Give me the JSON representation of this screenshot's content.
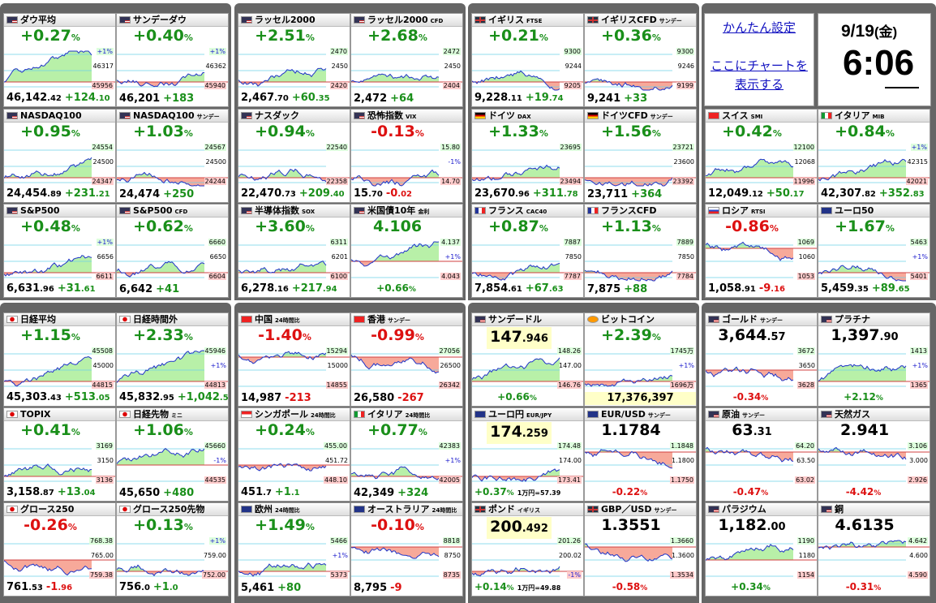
{
  "info": {
    "settings_link": "かんたん設定",
    "chart_link_line1": "ここにチャートを",
    "chart_link_line2": "表示する",
    "date": "9/19",
    "weekday": "(金)",
    "time": "6:06"
  },
  "colors": {
    "up": "#1a8f1a",
    "down": "#dd1111",
    "chart_fill": "#b8f0a8",
    "chart_fill_down": "#f7a99a",
    "line": "#1f34c8"
  },
  "tiles": [
    {
      "id": "dow",
      "name": "ダウ平均",
      "sub": "",
      "flag": "us",
      "dir": "up",
      "big": "+0.27",
      "pct": "%",
      "price": "46,142",
      "frac": ".42",
      "chg": "+124",
      "chgfrac": ".10",
      "labels": [
        "+1%",
        "46317",
        "45956"
      ],
      "mode": "green"
    },
    {
      "id": "dow-sunday",
      "name": "サンデーダウ",
      "sub": "",
      "flag": "us",
      "dir": "up",
      "big": "+0.40",
      "pct": "%",
      "price": "46,201",
      "frac": "",
      "chg": "+183",
      "chgfrac": "",
      "labels": [
        "+1%",
        "46362",
        "45940"
      ],
      "mode": "green"
    },
    {
      "id": "russell",
      "name": "ラッセル2000",
      "sub": "",
      "flag": "us",
      "dir": "up",
      "big": "+2.51",
      "pct": "%",
      "price": "2,467",
      "frac": ".70",
      "chg": "+60",
      "chgfrac": ".35",
      "labels": [
        "2470",
        "2450",
        "2420"
      ],
      "mode": "green"
    },
    {
      "id": "russell-cfd",
      "name": "ラッセル2000",
      "sub": "CFD",
      "flag": "us",
      "dir": "up",
      "big": "+2.68",
      "pct": "%",
      "price": "2,472",
      "frac": "",
      "chg": "+64",
      "chgfrac": "",
      "labels": [
        "2472",
        "2450",
        "2404"
      ],
      "mode": "green"
    },
    {
      "id": "ftse",
      "name": "イギリス",
      "sub": "FTSE",
      "flag": "uk",
      "dir": "up",
      "big": "+0.21",
      "pct": "%",
      "price": "9,228",
      "frac": ".11",
      "chg": "+19",
      "chgfrac": ".74",
      "labels": [
        "9300",
        "9244",
        "9205"
      ],
      "mode": "green"
    },
    {
      "id": "ftse-cfd",
      "name": "イギリスCFD",
      "sub": "サンデー",
      "flag": "uk",
      "dir": "up",
      "big": "+0.36",
      "pct": "%",
      "price": "9,241",
      "frac": "",
      "chg": "+33",
      "chgfrac": "",
      "labels": [
        "9300",
        "9246",
        "9199"
      ],
      "mode": "green"
    },
    {
      "id": "nasdaq",
      "name": "NASDAQ100",
      "sub": "",
      "flag": "us",
      "dir": "up",
      "big": "+0.95",
      "pct": "%",
      "price": "24,454",
      "frac": ".89",
      "chg": "+231",
      "chgfrac": ".21",
      "labels": [
        "24554",
        "24500",
        "24347"
      ],
      "mode": "green"
    },
    {
      "id": "nasdaq-sunday",
      "name": "NASDAQ100",
      "sub": "サンデー",
      "flag": "us",
      "dir": "up",
      "big": "+1.03",
      "pct": "%",
      "price": "24,474",
      "frac": "",
      "chg": "+250",
      "chgfrac": "",
      "labels": [
        "24567",
        "24500",
        "24244"
      ],
      "mode": "green"
    },
    {
      "id": "nasdaq-comp",
      "name": "ナスダック",
      "sub": "",
      "flag": "us",
      "dir": "up",
      "big": "+0.94",
      "pct": "%",
      "price": "22,470",
      "frac": ".73",
      "chg": "+209",
      "chgfrac": ".40",
      "labels": [
        "22540",
        "",
        "22358"
      ],
      "mode": "green"
    },
    {
      "id": "vix",
      "name": "恐怖指数",
      "sub": "VIX",
      "flag": "us",
      "dir": "dn",
      "big": "-0.13",
      "pct": "%",
      "price": "15",
      "frac": ".70",
      "chg": "-0",
      "chgfrac": ".02",
      "labels": [
        "15.80",
        "-1%",
        "14.70"
      ],
      "mode": "green"
    },
    {
      "id": "dax",
      "name": "ドイツ",
      "sub": "DAX",
      "flag": "de",
      "dir": "up",
      "big": "+1.33",
      "pct": "%",
      "price": "23,670",
      "frac": ".96",
      "chg": "+311",
      "chgfrac": ".78",
      "labels": [
        "23695",
        "",
        "23494"
      ],
      "mode": "green"
    },
    {
      "id": "dax-cfd",
      "name": "ドイツCFD",
      "sub": "サンデー",
      "flag": "de",
      "dir": "up",
      "big": "+1.56",
      "pct": "%",
      "price": "23,711",
      "frac": "",
      "chg": "+364",
      "chgfrac": "",
      "labels": [
        "23721",
        "23600",
        "23392"
      ],
      "mode": "green"
    },
    {
      "id": "smi",
      "name": "スイス",
      "sub": "SMI",
      "flag": "ch",
      "dir": "up",
      "big": "+0.42",
      "pct": "%",
      "price": "12,049",
      "frac": ".12",
      "chg": "+50",
      "chgfrac": ".17",
      "labels": [
        "12100",
        "12068",
        "11996"
      ],
      "mode": "green"
    },
    {
      "id": "mib",
      "name": "イタリア",
      "sub": "MIB",
      "flag": "it",
      "dir": "up",
      "big": "+0.84",
      "pct": "%",
      "price": "42,307",
      "frac": ".82",
      "chg": "+352",
      "chgfrac": ".83",
      "labels": [
        "+1%",
        "42315",
        "42021"
      ],
      "mode": "green"
    },
    {
      "id": "sp500",
      "name": "S&P500",
      "sub": "",
      "flag": "us",
      "dir": "up",
      "big": "+0.48",
      "pct": "%",
      "price": "6,631",
      "frac": ".96",
      "chg": "+31",
      "chgfrac": ".61",
      "labels": [
        "+1%",
        "6656",
        "6611"
      ],
      "mode": "green"
    },
    {
      "id": "sp500-cfd",
      "name": "S&P500",
      "sub": "CFD",
      "flag": "us",
      "dir": "up",
      "big": "+0.62",
      "pct": "%",
      "price": "6,642",
      "frac": "",
      "chg": "+41",
      "chgfrac": "",
      "labels": [
        "6660",
        "6650",
        "6604"
      ],
      "mode": "green"
    },
    {
      "id": "sox",
      "name": "半導体指数",
      "sub": "SOX",
      "flag": "us",
      "dir": "up",
      "big": "+3.60",
      "pct": "%",
      "price": "6,278",
      "frac": ".16",
      "chg": "+217",
      "chgfrac": ".94",
      "labels": [
        "6311",
        "6201",
        "6100"
      ],
      "mode": "green"
    },
    {
      "id": "us10y",
      "name": "米国債10年",
      "sub": "金利",
      "flag": "us",
      "dir": "up",
      "big": "4.106",
      "pct": "",
      "price": "",
      "frac": "",
      "chg": "+0.66",
      "chgfrac": "%",
      "labels": [
        "4.137",
        "+1%",
        "4.043"
      ],
      "mode": "mixed",
      "altfoot": true
    },
    {
      "id": "cac",
      "name": "フランス",
      "sub": "CAC40",
      "flag": "fr",
      "dir": "up",
      "big": "+0.87",
      "pct": "%",
      "price": "7,854",
      "frac": ".61",
      "chg": "+67",
      "chgfrac": ".63",
      "labels": [
        "7887",
        "7850",
        "7787"
      ],
      "mode": "green"
    },
    {
      "id": "cac-cfd",
      "name": "フランスCFD",
      "sub": "",
      "flag": "fr",
      "dir": "up",
      "big": "+1.13",
      "pct": "%",
      "price": "7,875",
      "frac": "",
      "chg": "+88",
      "chgfrac": "",
      "labels": [
        "7889",
        "7850",
        "7784"
      ],
      "mode": "green"
    },
    {
      "id": "rtsi",
      "name": "ロシア",
      "sub": "RTSI",
      "flag": "ru",
      "dir": "dn",
      "big": "-0.86",
      "pct": "%",
      "price": "1,058",
      "frac": ".91",
      "chg": "-9",
      "chgfrac": ".16",
      "labels": [
        "1069",
        "1060",
        "1053"
      ],
      "mode": "red"
    },
    {
      "id": "euro50",
      "name": "ユーロ50",
      "sub": "",
      "flag": "eu",
      "dir": "up",
      "big": "+1.67",
      "pct": "%",
      "price": "5,459",
      "frac": ".35",
      "chg": "+89",
      "chgfrac": ".65",
      "labels": [
        "5463",
        "+1%",
        "5401"
      ],
      "mode": "green"
    },
    {
      "id": "nikkei",
      "name": "日経平均",
      "sub": "",
      "flag": "jp",
      "dir": "up",
      "big": "+1.15",
      "pct": "%",
      "price": "45,303",
      "frac": ".43",
      "chg": "+513",
      "chgfrac": ".05",
      "labels": [
        "45508",
        "45000",
        "44815"
      ],
      "mode": "green"
    },
    {
      "id": "nikkei-after",
      "name": "日経時間外",
      "sub": "",
      "flag": "jp",
      "dir": "up",
      "big": "+2.33",
      "pct": "%",
      "price": "45,832",
      "frac": ".95",
      "chg": "+1,042",
      "chgfrac": ".57",
      "labels": [
        "45946",
        "+1%",
        "44813"
      ],
      "mode": "green"
    },
    {
      "id": "china",
      "name": "中国",
      "sub": "24時間比",
      "flag": "cn",
      "dir": "dn",
      "big": "-1.40",
      "pct": "%",
      "price": "14,987",
      "frac": "",
      "chg": "-213",
      "chgfrac": "",
      "labels": [
        "15294",
        "15000",
        "14855"
      ],
      "mode": "red"
    },
    {
      "id": "hongkong",
      "name": "香港",
      "sub": "サンデー",
      "flag": "hk",
      "dir": "dn",
      "big": "-0.99",
      "pct": "%",
      "price": "26,580",
      "frac": "",
      "chg": "-267",
      "chgfrac": "",
      "labels": [
        "27056",
        "26500",
        "26342"
      ],
      "mode": "red"
    },
    {
      "id": "usdjpy",
      "name": "サンデードル",
      "sub": "",
      "flag": "us",
      "dir": "up",
      "big": "147",
      "pct": ".946",
      "price": "",
      "frac": "",
      "chg": "+0.66",
      "chgfrac": "%",
      "labels": [
        "148.26",
        "147.00",
        "146.76"
      ],
      "mode": "green",
      "altfoot": true,
      "fx": true
    },
    {
      "id": "bitcoin",
      "name": "ビットコイン",
      "sub": "",
      "flag": "btc",
      "dir": "up",
      "big": "+2.39",
      "pct": "%",
      "price": "17,376,397",
      "frac": "",
      "chg": "",
      "chgfrac": "",
      "labels": [
        "1745万",
        "+1%",
        "1696万"
      ],
      "mode": "green",
      "btc": true
    },
    {
      "id": "gold",
      "name": "ゴールド",
      "sub": "サンデー",
      "flag": "us",
      "dir": "dn",
      "big": "3,644",
      "pct": ".57",
      "price": "",
      "frac": "",
      "chg": "-0.34",
      "chgfrac": "%",
      "labels": [
        "3672",
        "3650",
        "3628"
      ],
      "mode": "mixed",
      "altfoot": true,
      "black": true
    },
    {
      "id": "platinum",
      "name": "プラチナ",
      "sub": "",
      "flag": "us",
      "dir": "up",
      "big": "1,397",
      "pct": ".90",
      "price": "",
      "frac": "",
      "chg": "+2.12",
      "chgfrac": "%",
      "labels": [
        "1413",
        "+1%",
        "1365"
      ],
      "mode": "green",
      "altfoot": true,
      "black": true
    },
    {
      "id": "topix",
      "name": "TOPIX",
      "sub": "",
      "flag": "jp",
      "dir": "up",
      "big": "+0.41",
      "pct": "%",
      "price": "3,158",
      "frac": ".87",
      "chg": "+13",
      "chgfrac": ".04",
      "labels": [
        "3169",
        "3150",
        "3136"
      ],
      "mode": "green"
    },
    {
      "id": "nikkei-mini",
      "name": "日経先物",
      "sub": "ミニ",
      "flag": "jp",
      "dir": "up",
      "big": "+1.06",
      "pct": "%",
      "price": "45,650",
      "frac": "",
      "chg": "+480",
      "chgfrac": "",
      "labels": [
        "45660",
        "-1%",
        "44535"
      ],
      "mode": "mixed"
    },
    {
      "id": "singapore",
      "name": "シンガポール",
      "sub": "24時間比",
      "flag": "sg",
      "dir": "up",
      "big": "+0.24",
      "pct": "%",
      "price": "451",
      "frac": ".7",
      "chg": "+1",
      "chgfrac": ".1",
      "labels": [
        "455.00",
        "451.72",
        "448.10"
      ],
      "mode": "mixed"
    },
    {
      "id": "italy-24",
      "name": "イタリア",
      "sub": "24時間比",
      "flag": "it",
      "dir": "up",
      "big": "+0.77",
      "pct": "%",
      "price": "42,349",
      "frac": "",
      "chg": "+324",
      "chgfrac": "",
      "labels": [
        "42383",
        "+1%",
        "42005"
      ],
      "mode": "green"
    },
    {
      "id": "eurjpy",
      "name": "ユーロ円",
      "sub": "EUR/JPY",
      "flag": "eu",
      "dir": "up",
      "big": "174",
      "pct": ".259",
      "price": "",
      "frac": "",
      "chg": "+0.37",
      "chgfrac": "%",
      "labels": [
        "174.48",
        "174.00",
        "173.41"
      ],
      "mode": "green",
      "altfoot": true,
      "fx": true,
      "note": "1万円=57.39"
    },
    {
      "id": "eurusd",
      "name": "EUR/USD",
      "sub": "サンデー",
      "flag": "eu",
      "dir": "dn",
      "big": "1.1784",
      "pct": "",
      "price": "",
      "frac": "",
      "chg": "-0.22",
      "chgfrac": "%",
      "labels": [
        "1.1848",
        "1.1800",
        "1.1750"
      ],
      "mode": "red",
      "altfoot": true,
      "fx": true,
      "black": true
    },
    {
      "id": "crude",
      "name": "原油",
      "sub": "サンデー",
      "flag": "us",
      "dir": "dn",
      "big": "63",
      "pct": ".31",
      "price": "",
      "frac": "",
      "chg": "-0.47",
      "chgfrac": "%",
      "labels": [
        "64.20",
        "63.50",
        "63.02"
      ],
      "mode": "red",
      "altfoot": true,
      "black": true
    },
    {
      "id": "natgas",
      "name": "天然ガス",
      "sub": "",
      "flag": "us",
      "dir": "dn",
      "big": "2.941",
      "pct": "",
      "price": "",
      "frac": "",
      "chg": "-4.42",
      "chgfrac": "%",
      "labels": [
        "3.106",
        "3.000",
        "2.926"
      ],
      "mode": "red",
      "altfoot": true,
      "black": true
    },
    {
      "id": "growth250",
      "name": "グロース250",
      "sub": "",
      "flag": "jp",
      "dir": "dn",
      "big": "-0.26",
      "pct": "%",
      "price": "761",
      "frac": ".53",
      "chg": "-1",
      "chgfrac": ".96",
      "labels": [
        "768.38",
        "765.00",
        "759.38"
      ],
      "mode": "mixed"
    },
    {
      "id": "growth250-fut",
      "name": "グロース250先物",
      "sub": "",
      "flag": "jp",
      "dir": "up",
      "big": "+0.13",
      "pct": "%",
      "price": "756",
      "frac": ".0",
      "chg": "+1",
      "chgfrac": ".0",
      "labels": [
        "+1%",
        "759.00",
        "752.00"
      ],
      "mode": "green"
    },
    {
      "id": "europe",
      "name": "欧州",
      "sub": "24時間比",
      "flag": "eu",
      "dir": "up",
      "big": "+1.49",
      "pct": "%",
      "price": "5,461",
      "frac": "",
      "chg": "+80",
      "chgfrac": "",
      "labels": [
        "5466",
        "+1%",
        "5373"
      ],
      "mode": "green"
    },
    {
      "id": "australia",
      "name": "オーストラリア",
      "sub": "24時間比",
      "flag": "au",
      "dir": "dn",
      "big": "-0.10",
      "pct": "%",
      "price": "8,795",
      "frac": "",
      "chg": "-9",
      "chgfrac": "",
      "labels": [
        "8818",
        "8750",
        "8735"
      ],
      "mode": "red"
    },
    {
      "id": "gbpjpy",
      "name": "ポンド",
      "sub": "イギリス",
      "flag": "uk",
      "dir": "up",
      "big": "200",
      "pct": ".492",
      "price": "",
      "frac": "",
      "chg": "+0.14",
      "chgfrac": "%",
      "labels": [
        "201.26",
        "200.02",
        "-1%"
      ],
      "mode": "green",
      "altfoot": true,
      "fx": true,
      "note": "1万円=49.88"
    },
    {
      "id": "gbpusd",
      "name": "GBP／USD",
      "sub": "サンデー",
      "flag": "uk",
      "dir": "dn",
      "big": "1.3551",
      "pct": "",
      "price": "",
      "frac": "",
      "chg": "-0.58",
      "chgfrac": "%",
      "labels": [
        "1.3660",
        "1.3600",
        "1.3534"
      ],
      "mode": "red",
      "altfoot": true,
      "fx": true,
      "black": true
    },
    {
      "id": "palladium",
      "name": "パラジウム",
      "sub": "",
      "flag": "us",
      "dir": "up",
      "big": "1,182",
      "pct": ".00",
      "price": "",
      "frac": "",
      "chg": "+0.34",
      "chgfrac": "%",
      "labels": [
        "1190",
        "1180",
        "1154"
      ],
      "mode": "mixed",
      "altfoot": true,
      "black": true
    },
    {
      "id": "copper",
      "name": "銅",
      "sub": "",
      "flag": "us",
      "dir": "dn",
      "big": "4.6135",
      "pct": "",
      "price": "",
      "frac": "",
      "chg": "-0.31",
      "chgfrac": "%",
      "labels": [
        "4.642",
        "4.600",
        "4.590"
      ],
      "mode": "red",
      "altfoot": true,
      "black": true
    }
  ]
}
